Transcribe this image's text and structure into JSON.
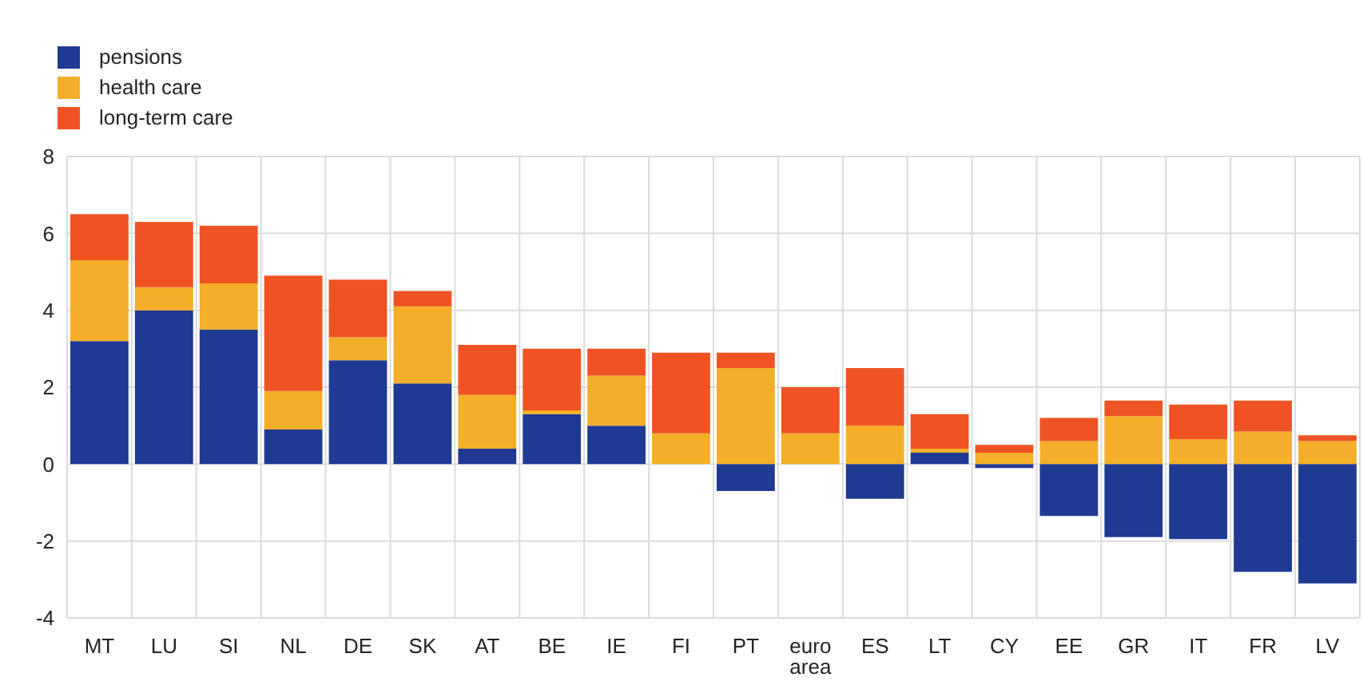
{
  "chart_data": {
    "type": "bar",
    "stacked": true,
    "categories": [
      "MT",
      "LU",
      "SI",
      "NL",
      "DE",
      "SK",
      "AT",
      "BE",
      "IE",
      "FI",
      "PT",
      "euro area",
      "ES",
      "LT",
      "CY",
      "EE",
      "GR",
      "IT",
      "FR",
      "LV"
    ],
    "series": [
      {
        "name": "pensions",
        "color": "#1f3a93",
        "values": [
          3.2,
          4.0,
          3.5,
          0.9,
          2.7,
          2.1,
          0.4,
          1.3,
          1.0,
          0,
          -0.7,
          0,
          -0.9,
          0.3,
          -0.1,
          -1.35,
          -1.9,
          -1.95,
          -2.8,
          -3.1
        ]
      },
      {
        "name": "health care",
        "color": "#f4ae2a",
        "values": [
          2.1,
          0.6,
          1.2,
          1.0,
          0.6,
          2.0,
          1.4,
          0.1,
          1.3,
          0.8,
          2.5,
          0.8,
          1.0,
          0.1,
          0.3,
          0.6,
          1.25,
          0.65,
          0.85,
          0.6
        ]
      },
      {
        "name": "long-term care",
        "color": "#ef5323",
        "values": [
          1.2,
          1.7,
          1.5,
          3.0,
          1.5,
          0.4,
          1.3,
          1.6,
          0.7,
          2.1,
          0.4,
          1.2,
          1.5,
          0.9,
          0.2,
          0.6,
          0.4,
          0.9,
          0.8,
          0.15
        ]
      }
    ],
    "ylim": [
      -4,
      8
    ],
    "yticks": [
      -4,
      -2,
      0,
      2,
      4,
      6,
      8
    ],
    "grid": true,
    "legend": "top left"
  }
}
